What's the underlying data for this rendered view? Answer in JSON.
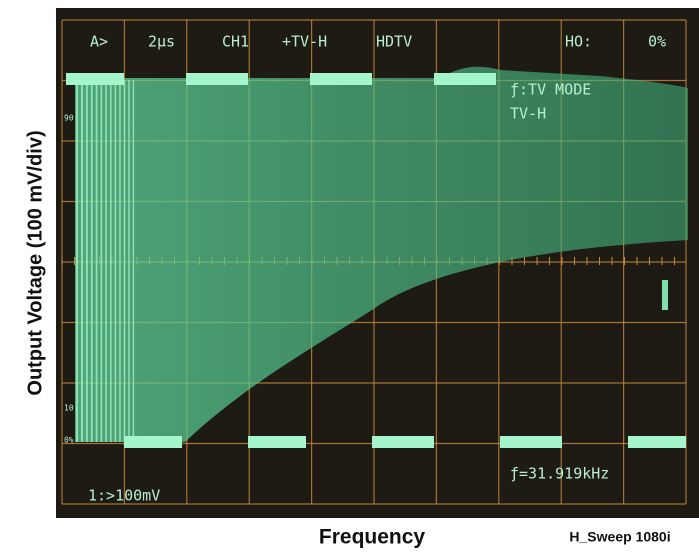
{
  "screen": {
    "status": [
      "A>",
      "2μs",
      "CH1",
      "+TV-H",
      "HDTV",
      "HO:",
      "0%"
    ],
    "mode": [
      "ƒ:TV MODE",
      "TV-H"
    ],
    "scale_marks": [
      "90",
      "10",
      "0%"
    ],
    "frequency": "ƒ=31.919kHz",
    "channel": "1:>100mV"
  },
  "labels": {
    "y_axis": "Output Voltage (100 mV/div)",
    "x_axis": "Frequency",
    "caption": "H_Sweep 1080i"
  }
}
